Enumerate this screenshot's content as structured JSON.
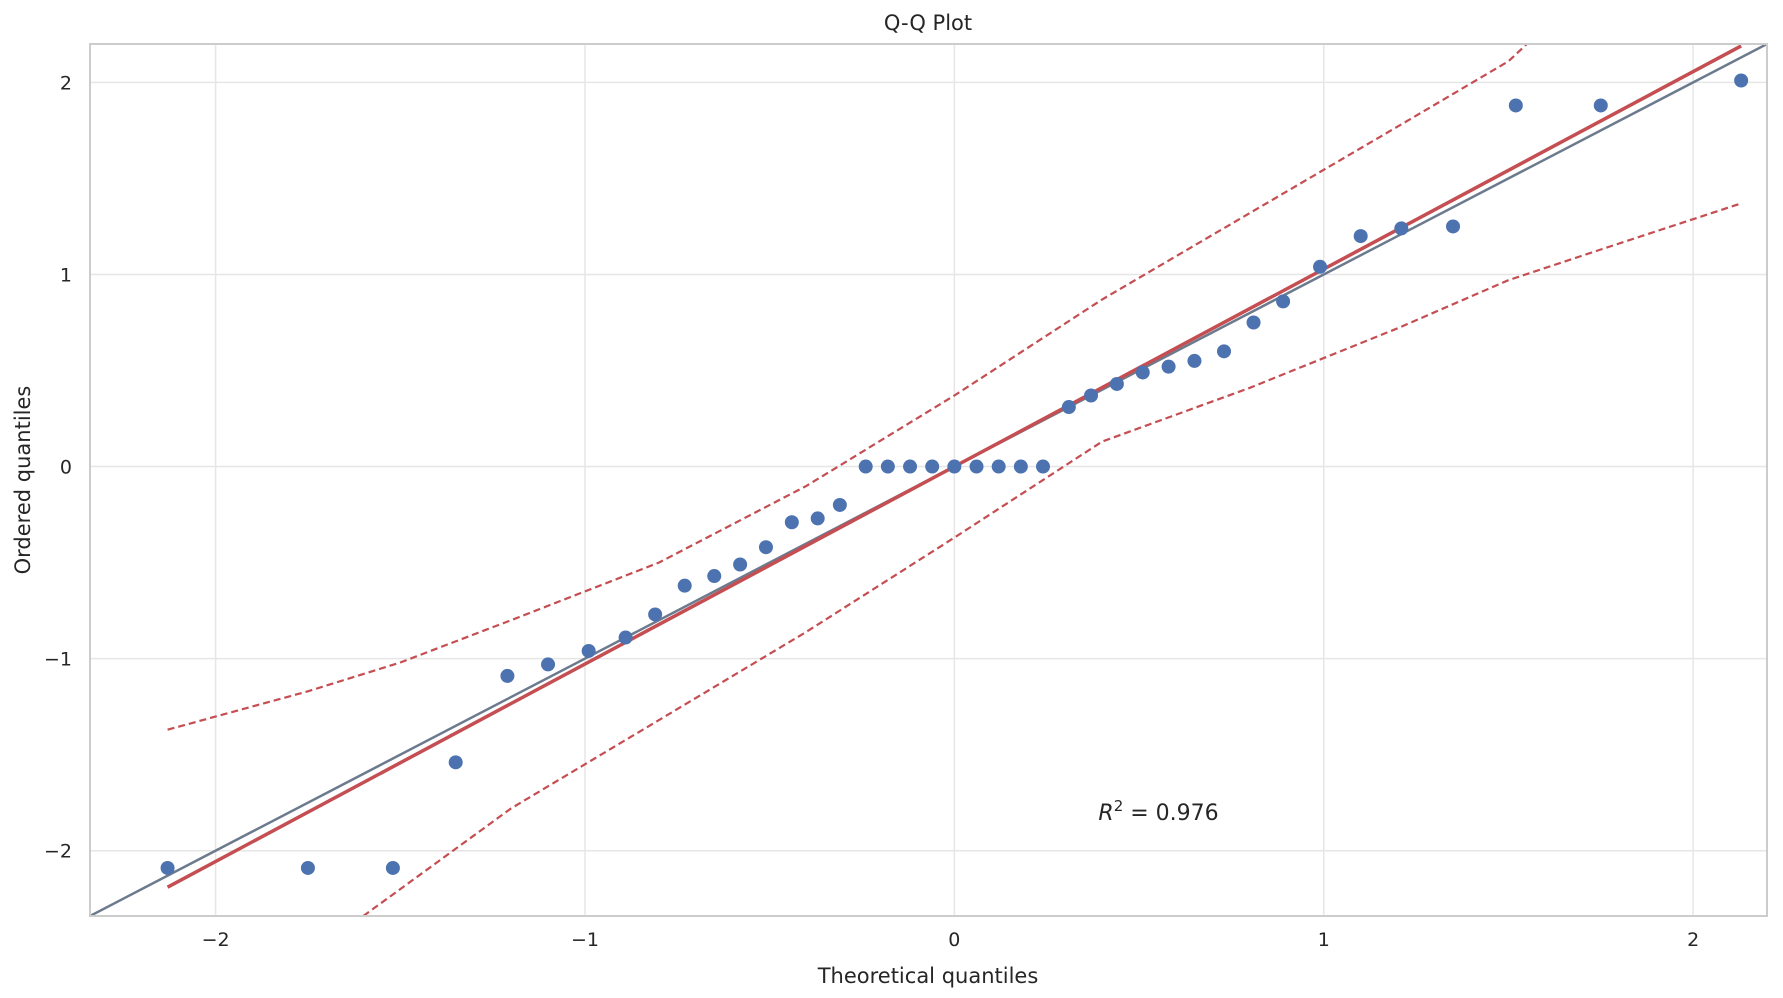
{
  "chart_data": {
    "type": "scatter",
    "title": "Q-Q Plot",
    "xlabel": "Theoretical quantiles",
    "ylabel": "Ordered quantiles",
    "xlim": [
      -2.34,
      2.2
    ],
    "ylim": [
      -2.34,
      2.2
    ],
    "xticks": [
      -2,
      -1,
      0,
      1,
      2
    ],
    "yticks": [
      -2,
      -1,
      0,
      1,
      2
    ],
    "xtick_labels": [
      "−2",
      "−1",
      "0",
      "1",
      "2"
    ],
    "ytick_labels": [
      "−2",
      "−1",
      "0",
      "1",
      "2"
    ],
    "grid": true,
    "annotation": {
      "prefix": "R",
      "sup": "2",
      "value": " = 0.976",
      "x": 0.39,
      "y": -1.84
    },
    "points": {
      "x": [
        -2.13,
        -1.75,
        -1.52,
        -1.35,
        -1.21,
        -1.1,
        -0.99,
        -0.89,
        -0.81,
        -0.73,
        -0.65,
        -0.58,
        -0.51,
        -0.44,
        -0.37,
        -0.31,
        -0.24,
        -0.18,
        -0.12,
        -0.06,
        0.0,
        0.06,
        0.12,
        0.18,
        0.24,
        0.31,
        0.37,
        0.44,
        0.51,
        0.58,
        0.65,
        0.73,
        0.81,
        0.89,
        0.99,
        1.1,
        1.21,
        1.35,
        1.52,
        1.75,
        2.13
      ],
      "y": [
        -2.09,
        -2.09,
        -2.09,
        -1.54,
        -1.09,
        -1.03,
        -0.96,
        -0.89,
        -0.77,
        -0.62,
        -0.57,
        -0.51,
        -0.42,
        -0.29,
        -0.27,
        -0.2,
        0.0,
        0.0,
        0.0,
        0.0,
        0.0,
        0.0,
        0.0,
        0.0,
        0.0,
        0.31,
        0.37,
        0.43,
        0.49,
        0.52,
        0.55,
        0.6,
        0.75,
        0.86,
        1.04,
        1.2,
        1.24,
        1.25,
        1.88,
        1.88,
        2.01
      ],
      "color": "#4c72b0"
    },
    "reference_line": {
      "slope": 1.0,
      "intercept": 0.0,
      "color": "#6c7a8e"
    },
    "fit_line": {
      "x": [
        -2.13,
        2.13
      ],
      "y": [
        -2.19,
        2.19
      ],
      "color": "#c44e52"
    },
    "confidence_band": {
      "color": "#c44e52",
      "upper": {
        "x": [
          -2.13,
          -1.75,
          -1.5,
          -1.2,
          -0.8,
          -0.4,
          0.0,
          0.4,
          0.8,
          1.2,
          1.5,
          1.55
        ],
        "y": [
          -1.37,
          -1.17,
          -1.02,
          -0.8,
          -0.5,
          -0.1,
          0.37,
          0.87,
          1.32,
          1.77,
          2.11,
          2.2
        ]
      },
      "lower": {
        "x": [
          -1.6,
          -1.5,
          -1.2,
          -0.8,
          -0.4,
          0.0,
          0.4,
          0.8,
          1.2,
          1.5,
          1.75,
          2.13
        ],
        "y": [
          -2.34,
          -2.2,
          -1.78,
          -1.32,
          -0.86,
          -0.37,
          0.13,
          0.41,
          0.72,
          0.97,
          1.13,
          1.37
        ]
      }
    }
  }
}
